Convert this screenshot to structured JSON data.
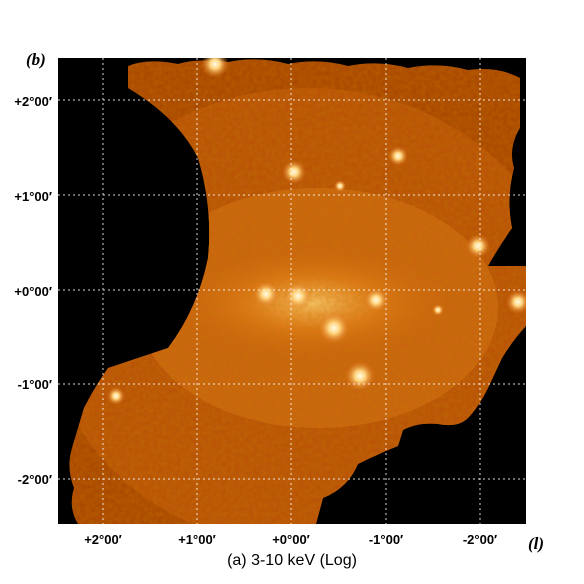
{
  "figure": {
    "y_axis_label": "(b)",
    "x_axis_label": "(l)",
    "y_ticks": [
      "+2°00′",
      "+1°00′",
      "+0°00′",
      "-1°00′",
      "-2°00′"
    ],
    "x_ticks": [
      "+2°00′",
      "+1°00′",
      "+0°00′",
      "-1°00′",
      "-2°00′"
    ],
    "caption": "(a) 3-10 keV (Log)"
  },
  "colors": {
    "background": "#000000",
    "diffuse_dark": "#9a3a00",
    "diffuse_mid": "#c85a0a",
    "diffuse_bright": "#ffb24a",
    "point_source": "#fff6d8",
    "grid": "#ffffff"
  }
}
